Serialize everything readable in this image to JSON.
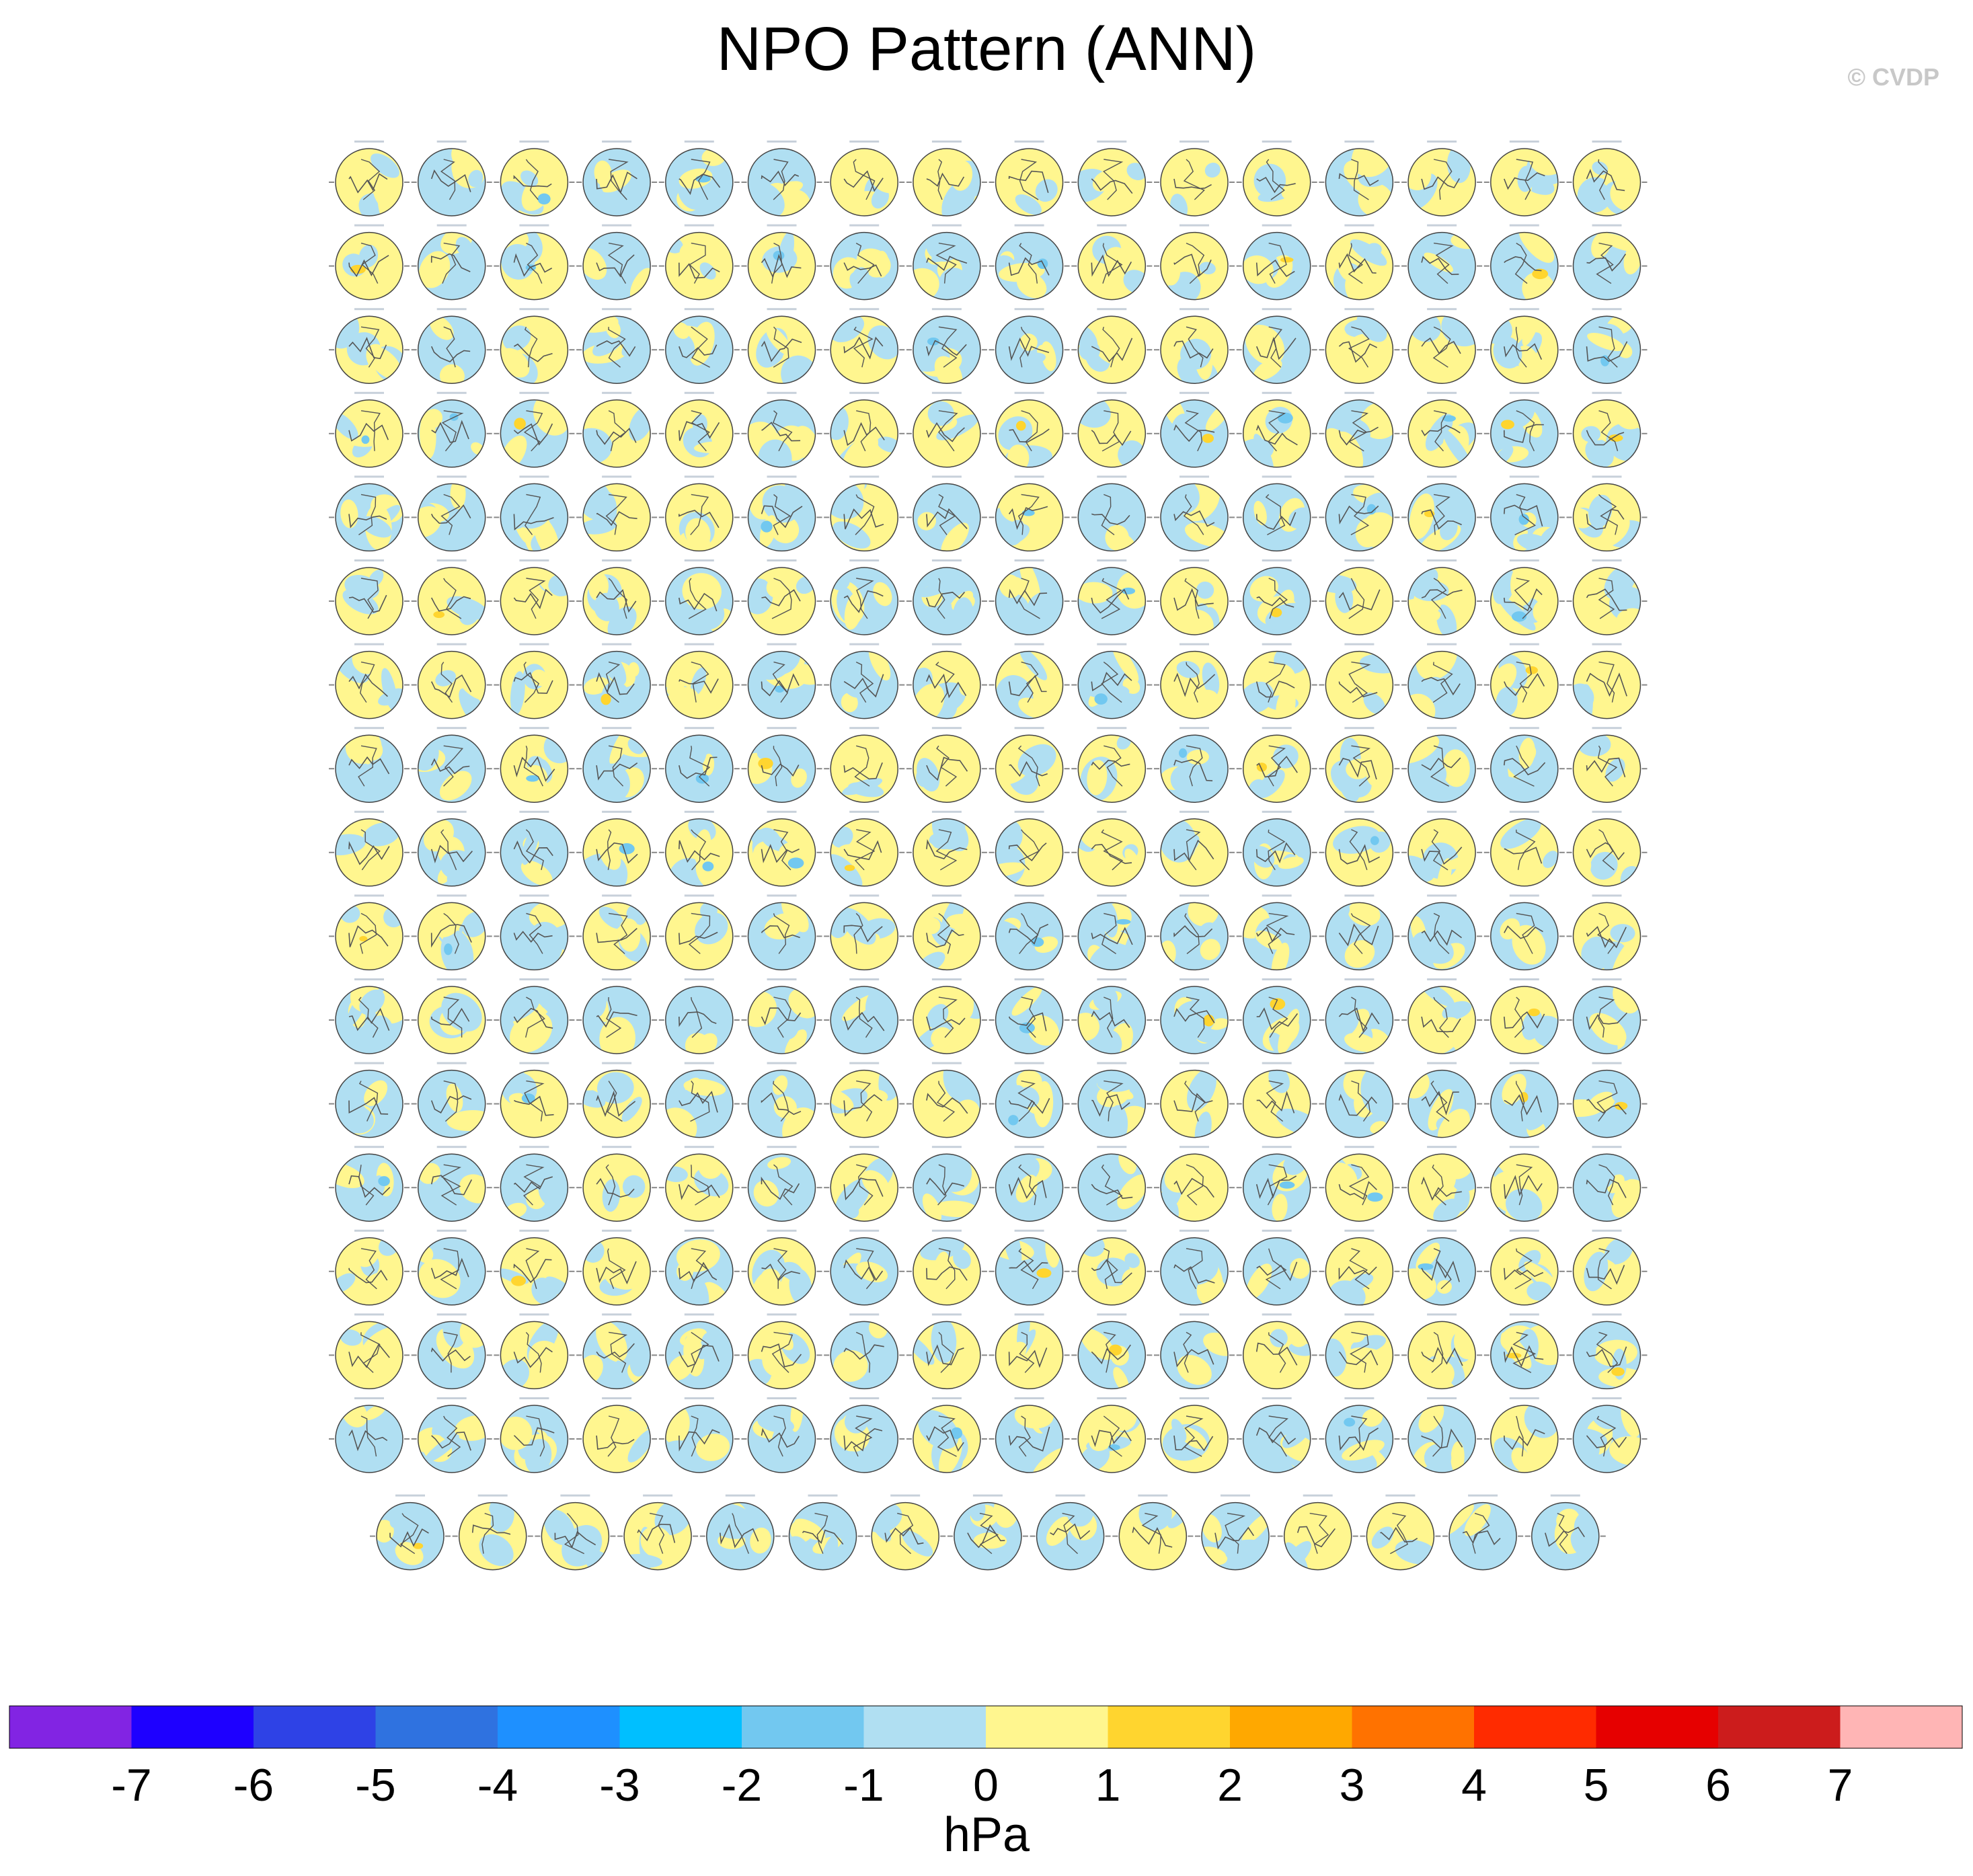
{
  "header": {
    "title": "NPO Pattern (ANN)",
    "credit": "© CVDP"
  },
  "chart_data": {
    "type": "heatmap",
    "title": "NPO Pattern (ANN)",
    "description_kind": "ensemble of polar-stereographic maps (one per simulation)",
    "panel_layout": {
      "rows": 17,
      "cols": 16,
      "last_row_panels": 15,
      "total_panels": 287
    },
    "colorbar": {
      "units": "hPa",
      "tick_labels": [
        "-7",
        "-6",
        "-5",
        "-4",
        "-3",
        "-2",
        "-1",
        "0",
        "1",
        "2",
        "3",
        "4",
        "5",
        "6",
        "7"
      ],
      "levels": [
        -7,
        -6,
        -5,
        -4,
        -3,
        -2,
        -1,
        0,
        1,
        2,
        3,
        4,
        5,
        6,
        7
      ],
      "colors": [
        "#8224e3",
        "#1e00ff",
        "#2e42e6",
        "#2f72e0",
        "#1e90ff",
        "#00bfff",
        "#72c8f0",
        "#b0dff2",
        "#fff68f",
        "#ffd52f",
        "#ffa800",
        "#ff7200",
        "#ff2b00",
        "#e60000",
        "#cc1c1c",
        "#ffb5b5"
      ]
    },
    "map_colors": {
      "positive": "#fff68f",
      "negative": "#b0dff2",
      "strong_negative": "#72c8f0",
      "strong_positive": "#ffd52f",
      "coast": "#555555"
    }
  }
}
